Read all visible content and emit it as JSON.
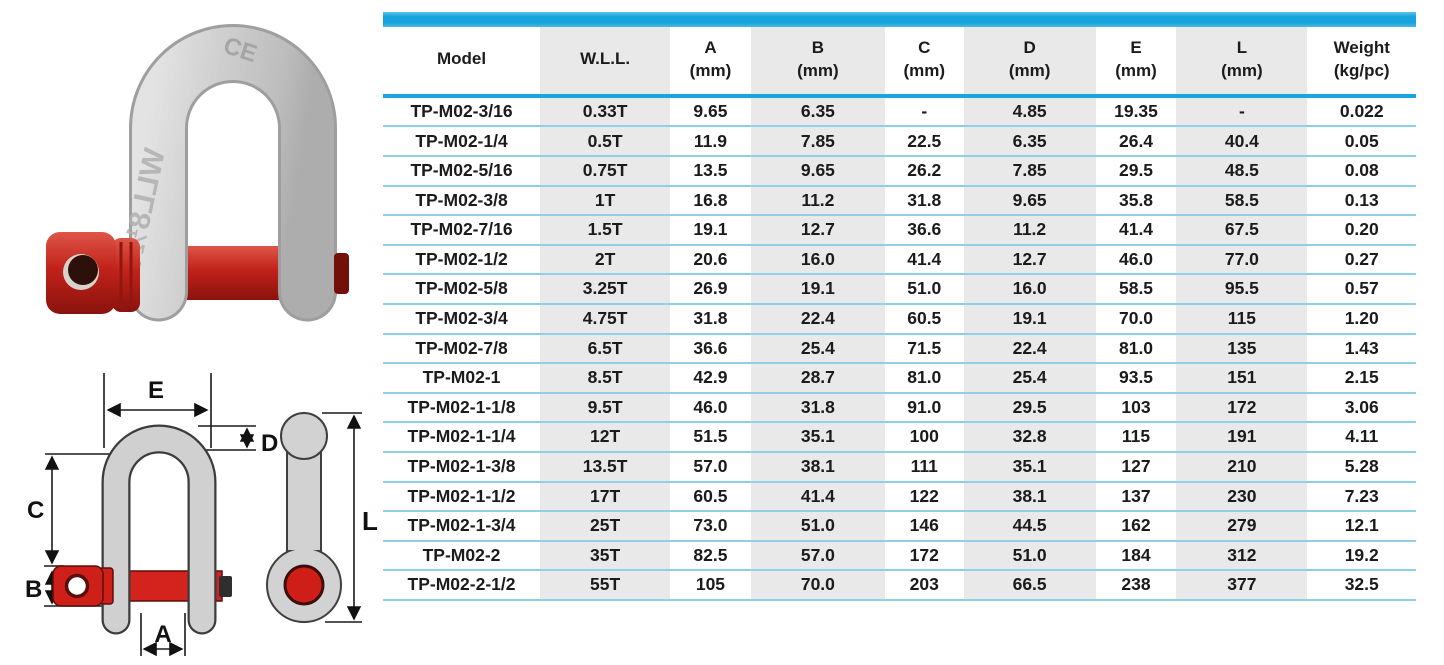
{
  "photo": {
    "alt": "galvanized-d-shackle-with-red-screw-pin",
    "marking_ce": "CE",
    "marking_wll": "WLL8½T"
  },
  "diagram": {
    "labels": {
      "E": "E",
      "D": "D",
      "C": "C",
      "B": "B",
      "A": "A",
      "L": "L"
    }
  },
  "colors": {
    "accent_bar": "#17a4de",
    "header_rule": "#1ba5de",
    "row_rule": "#8fd0e6",
    "column_stripe": "#e9e9e9",
    "text": "#1b1b1b",
    "pin_red": "#c8221a",
    "steel_gray": "#c9c9c9"
  },
  "table": {
    "columns": [
      "Model",
      "W.L.L.",
      "A\n(mm)",
      "B\n(mm)",
      "C\n(mm)",
      "D\n(mm)",
      "E\n(mm)",
      "L\n(mm)",
      "Weight\n(kg/pc)"
    ],
    "rows": [
      [
        "TP-M02-3/16",
        "0.33T",
        "9.65",
        "6.35",
        "-",
        "4.85",
        "19.35",
        "-",
        "0.022"
      ],
      [
        "TP-M02-1/4",
        "0.5T",
        "11.9",
        "7.85",
        "22.5",
        "6.35",
        "26.4",
        "40.4",
        "0.05"
      ],
      [
        "TP-M02-5/16",
        "0.75T",
        "13.5",
        "9.65",
        "26.2",
        "7.85",
        "29.5",
        "48.5",
        "0.08"
      ],
      [
        "TP-M02-3/8",
        "1T",
        "16.8",
        "11.2",
        "31.8",
        "9.65",
        "35.8",
        "58.5",
        "0.13"
      ],
      [
        "TP-M02-7/16",
        "1.5T",
        "19.1",
        "12.7",
        "36.6",
        "11.2",
        "41.4",
        "67.5",
        "0.20"
      ],
      [
        "TP-M02-1/2",
        "2T",
        "20.6",
        "16.0",
        "41.4",
        "12.7",
        "46.0",
        "77.0",
        "0.27"
      ],
      [
        "TP-M02-5/8",
        "3.25T",
        "26.9",
        "19.1",
        "51.0",
        "16.0",
        "58.5",
        "95.5",
        "0.57"
      ],
      [
        "TP-M02-3/4",
        "4.75T",
        "31.8",
        "22.4",
        "60.5",
        "19.1",
        "70.0",
        "115",
        "1.20"
      ],
      [
        "TP-M02-7/8",
        "6.5T",
        "36.6",
        "25.4",
        "71.5",
        "22.4",
        "81.0",
        "135",
        "1.43"
      ],
      [
        "TP-M02-1",
        "8.5T",
        "42.9",
        "28.7",
        "81.0",
        "25.4",
        "93.5",
        "151",
        "2.15"
      ],
      [
        "TP-M02-1-1/8",
        "9.5T",
        "46.0",
        "31.8",
        "91.0",
        "29.5",
        "103",
        "172",
        "3.06"
      ],
      [
        "TP-M02-1-1/4",
        "12T",
        "51.5",
        "35.1",
        "100",
        "32.8",
        "115",
        "191",
        "4.11"
      ],
      [
        "TP-M02-1-3/8",
        "13.5T",
        "57.0",
        "38.1",
        "111",
        "35.1",
        "127",
        "210",
        "5.28"
      ],
      [
        "TP-M02-1-1/2",
        "17T",
        "60.5",
        "41.4",
        "122",
        "38.1",
        "137",
        "230",
        "7.23"
      ],
      [
        "TP-M02-1-3/4",
        "25T",
        "73.0",
        "51.0",
        "146",
        "44.5",
        "162",
        "279",
        "12.1"
      ],
      [
        "TP-M02-2",
        "35T",
        "82.5",
        "57.0",
        "172",
        "51.0",
        "184",
        "312",
        "19.2"
      ],
      [
        "TP-M02-2-1/2",
        "55T",
        "105",
        "70.0",
        "203",
        "66.5",
        "238",
        "377",
        "32.5"
      ]
    ]
  }
}
